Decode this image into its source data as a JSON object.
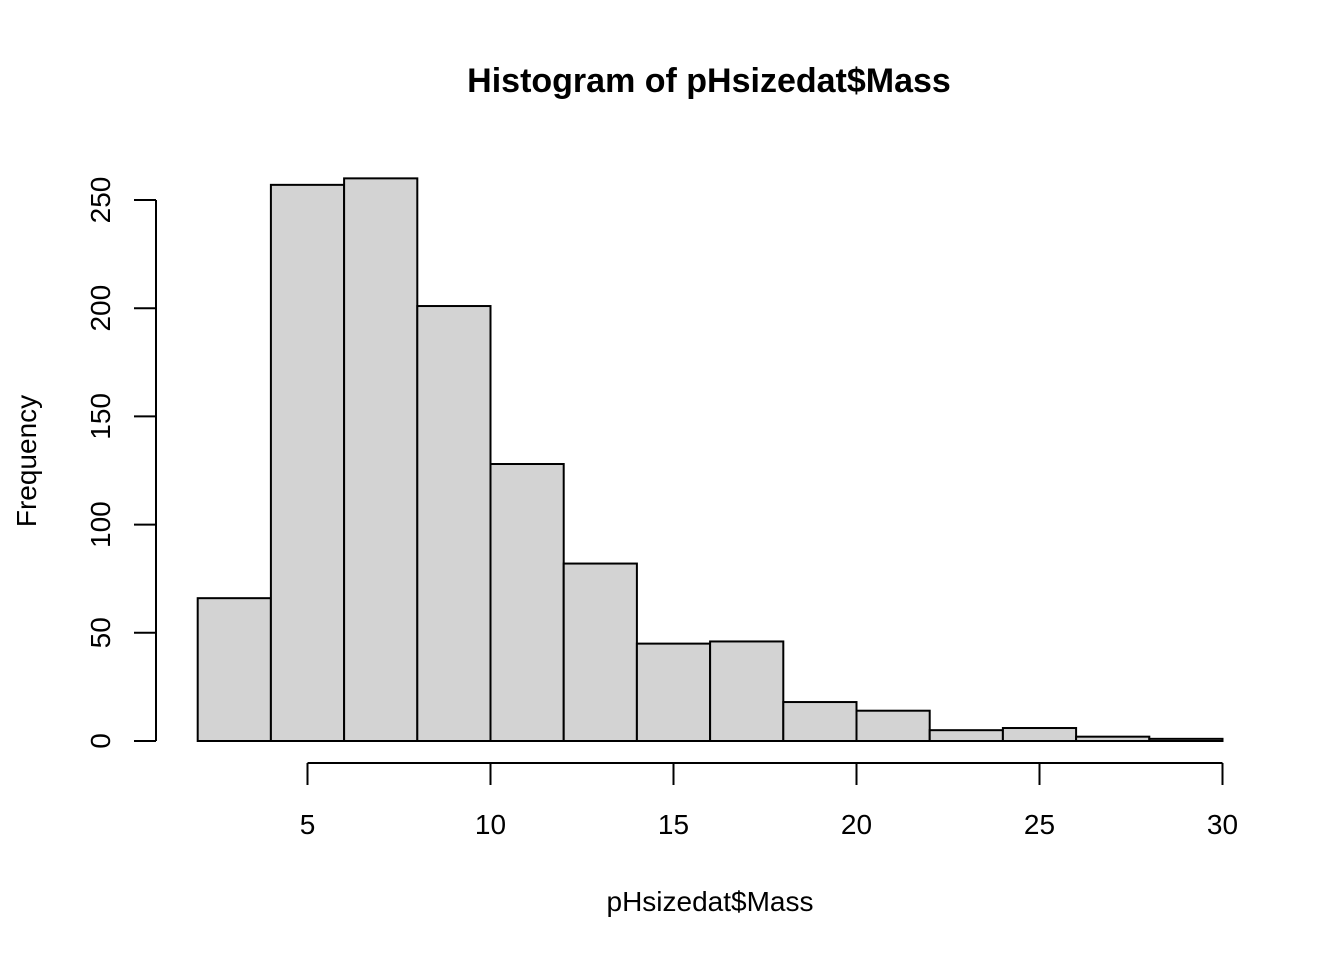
{
  "chart_data": {
    "type": "bar",
    "title": "Histogram of pHsizedat$Mass",
    "xlabel": "pHsizedat$Mass",
    "ylabel": "Frequency",
    "bin_edges": [
      2,
      4,
      6,
      8,
      10,
      12,
      14,
      16,
      18,
      20,
      22,
      24,
      26,
      28,
      30
    ],
    "values": [
      66,
      257,
      260,
      201,
      128,
      82,
      45,
      46,
      18,
      14,
      5,
      6,
      2,
      1
    ],
    "x_ticks": [
      5,
      10,
      15,
      20,
      25,
      30
    ],
    "y_ticks": [
      0,
      50,
      100,
      150,
      200,
      250
    ],
    "xlim": [
      5,
      30
    ],
    "ylim": [
      0,
      250
    ],
    "bar_color": "#d3d3d3",
    "grid": false
  }
}
